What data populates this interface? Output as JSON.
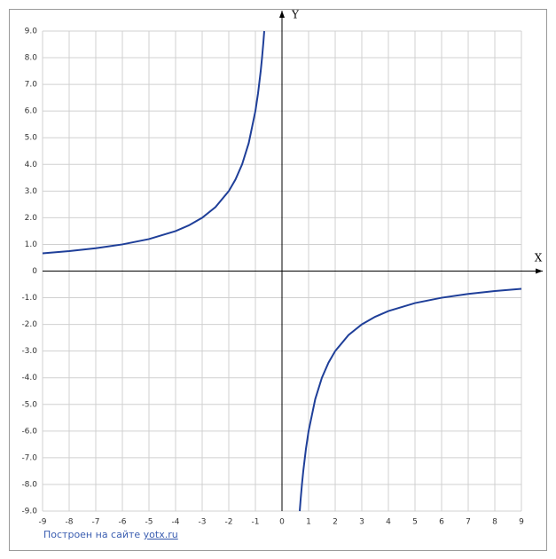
{
  "chart_data": {
    "type": "line",
    "x": [
      -9,
      -8,
      -7,
      -6,
      -5,
      -4,
      -3.5,
      -3,
      -2.5,
      -2,
      -1.75,
      -1.5,
      -1.25,
      -1,
      -0.9,
      -0.8,
      -0.75,
      -0.7,
      -0.667,
      null,
      0.667,
      0.7,
      0.75,
      0.8,
      0.9,
      1,
      1.25,
      1.5,
      1.75,
      2,
      2.5,
      3,
      3.5,
      4,
      5,
      6,
      7,
      8,
      9
    ],
    "values": [
      0.667,
      0.75,
      0.857,
      1,
      1.2,
      1.5,
      1.714,
      2,
      2.4,
      3,
      3.429,
      4,
      4.8,
      6,
      6.667,
      7.5,
      8,
      8.571,
      9,
      null,
      -9,
      -8.571,
      -8,
      -7.5,
      -6.667,
      -6,
      -4.8,
      -4,
      -3.429,
      -3,
      -2.4,
      -2,
      -1.714,
      -1.5,
      -1.2,
      -1,
      -0.857,
      -0.75,
      -0.667
    ],
    "color": "#1f3f99",
    "xlim": [
      -9,
      9
    ],
    "ylim": [
      -9,
      9
    ],
    "xticks": [
      -9,
      -8,
      -7,
      -6,
      -5,
      -4,
      -3,
      -2,
      -1,
      0,
      1,
      2,
      3,
      4,
      5,
      6,
      7,
      8,
      9
    ],
    "yticks": [
      {
        "value": 9,
        "label": "9.0"
      },
      {
        "value": 8,
        "label": "8.0"
      },
      {
        "value": 7,
        "label": "7.0"
      },
      {
        "value": 6,
        "label": "6.0"
      },
      {
        "value": 5,
        "label": "5.0"
      },
      {
        "value": 4,
        "label": "4.0"
      },
      {
        "value": 3,
        "label": "3.0"
      },
      {
        "value": 2,
        "label": "2.0"
      },
      {
        "value": 1,
        "label": "1.0"
      },
      0,
      {
        "value": -1,
        "label": "-1.0"
      },
      {
        "value": -2,
        "label": "-2.0"
      },
      {
        "value": -3,
        "label": "-3.0"
      },
      {
        "value": -4,
        "label": "-4.0"
      },
      {
        "value": -5,
        "label": "-5.0"
      },
      {
        "value": -6,
        "label": "-6.0"
      },
      {
        "value": -7,
        "label": "-7.0"
      },
      {
        "value": -8,
        "label": "-8.0"
      },
      {
        "value": -9,
        "label": "-9.0"
      }
    ],
    "grid": true,
    "x_label": "X",
    "y_label": "Y",
    "footer_text": "Построен на сайте",
    "footer_link": "yotx.ru"
  }
}
